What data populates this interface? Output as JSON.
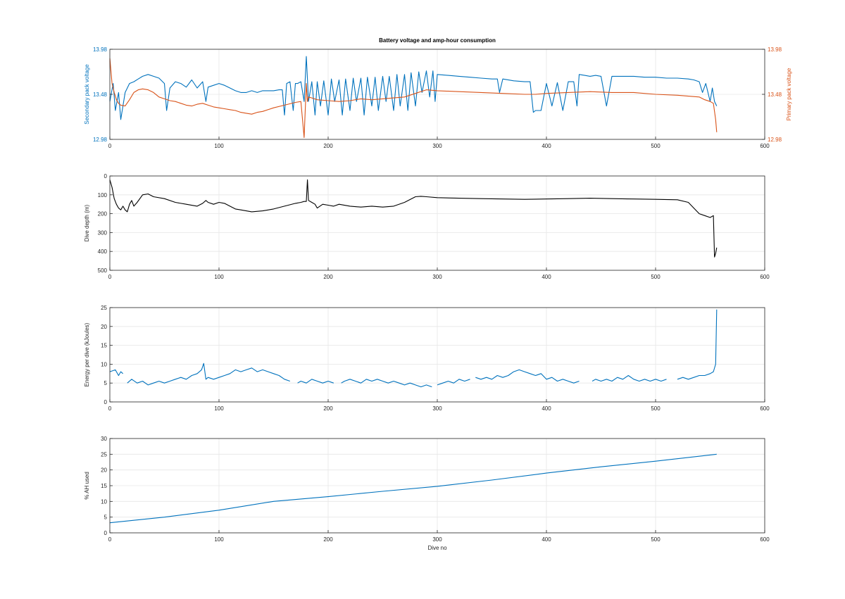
{
  "colors": {
    "blue": "#0072bd",
    "orange": "#d95319",
    "black": "#000000"
  },
  "chart_data": [
    {
      "type": "line",
      "title": "Battery voltage and amp-hour consumption",
      "xlabel": "",
      "ylabel": "Secondary pack voltage",
      "y2label": "Primary pack voltage",
      "xlim": [
        0,
        600
      ],
      "ylim": [
        12.98,
        13.98
      ],
      "y2lim": [
        12.98,
        13.98
      ],
      "xticks": [
        "0",
        "100",
        "200",
        "300",
        "400",
        "500",
        "600"
      ],
      "yticks": [
        "12.98",
        "13.48",
        "13.98"
      ],
      "y2ticks": [
        "12.98",
        "13.48",
        "13.98"
      ],
      "grid": true,
      "series": [
        {
          "axis": "left",
          "color": "#0072bd",
          "x": [
            0,
            3,
            5,
            8,
            10,
            14,
            18,
            22,
            26,
            30,
            35,
            40,
            45,
            50,
            52,
            55,
            60,
            65,
            70,
            75,
            80,
            85,
            88,
            90,
            95,
            100,
            105,
            110,
            115,
            120,
            125,
            130,
            135,
            140,
            145,
            150,
            155,
            158,
            160,
            162,
            165,
            168,
            170,
            172,
            175,
            178,
            180,
            181,
            182,
            185,
            188,
            190,
            193,
            196,
            200,
            203,
            206,
            210,
            213,
            216,
            220,
            223,
            226,
            230,
            233,
            236,
            240,
            243,
            246,
            250,
            253,
            256,
            260,
            263,
            266,
            270,
            273,
            276,
            280,
            283,
            286,
            290,
            293,
            296,
            298,
            300,
            310,
            320,
            330,
            340,
            350,
            355,
            357,
            360,
            370,
            380,
            385,
            388,
            390,
            395,
            400,
            405,
            410,
            415,
            420,
            425,
            428,
            430,
            435,
            440,
            445,
            450,
            455,
            460,
            470,
            480,
            490,
            500,
            510,
            520,
            530,
            535,
            540,
            543,
            546,
            550,
            552,
            554,
            556
          ],
          "y": [
            13.4,
            13.6,
            13.3,
            13.5,
            13.2,
            13.5,
            13.6,
            13.62,
            13.65,
            13.68,
            13.7,
            13.68,
            13.66,
            13.6,
            13.3,
            13.55,
            13.62,
            13.6,
            13.56,
            13.64,
            13.55,
            13.62,
            13.4,
            13.56,
            13.58,
            13.6,
            13.58,
            13.55,
            13.52,
            13.5,
            13.5,
            13.52,
            13.5,
            13.52,
            13.52,
            13.52,
            13.53,
            13.53,
            13.25,
            13.6,
            13.62,
            13.3,
            13.6,
            13.6,
            13.62,
            13.4,
            13.9,
            13.65,
            13.4,
            13.62,
            13.25,
            13.62,
            13.35,
            13.63,
            13.25,
            13.65,
            13.4,
            13.64,
            13.25,
            13.65,
            13.3,
            13.66,
            13.4,
            13.66,
            13.25,
            13.67,
            13.35,
            13.67,
            13.3,
            13.68,
            13.4,
            13.68,
            13.3,
            13.7,
            13.35,
            13.7,
            13.3,
            13.72,
            13.35,
            13.73,
            13.5,
            13.74,
            13.45,
            13.74,
            13.4,
            13.7,
            13.69,
            13.68,
            13.67,
            13.66,
            13.65,
            13.65,
            13.5,
            13.65,
            13.63,
            13.62,
            13.62,
            13.28,
            13.3,
            13.3,
            13.6,
            13.35,
            13.61,
            13.3,
            13.62,
            13.62,
            13.35,
            13.7,
            13.69,
            13.68,
            13.69,
            13.68,
            13.35,
            13.68,
            13.68,
            13.68,
            13.67,
            13.67,
            13.66,
            13.66,
            13.65,
            13.64,
            13.62,
            13.5,
            13.6,
            13.4,
            13.55,
            13.4,
            13.35
          ]
        },
        {
          "axis": "right",
          "color": "#d95319",
          "x": [
            0,
            2,
            4,
            6,
            8,
            10,
            14,
            18,
            22,
            26,
            30,
            35,
            40,
            45,
            50,
            55,
            60,
            65,
            70,
            75,
            80,
            85,
            90,
            95,
            100,
            105,
            110,
            115,
            120,
            125,
            130,
            135,
            140,
            150,
            160,
            170,
            175,
            178,
            180,
            181,
            182,
            185,
            190,
            200,
            210,
            220,
            230,
            240,
            250,
            260,
            270,
            280,
            290,
            300,
            320,
            340,
            360,
            380,
            390,
            400,
            420,
            440,
            460,
            480,
            500,
            520,
            540,
            545,
            550,
            553,
            555,
            556
          ],
          "y": [
            13.88,
            13.6,
            13.5,
            13.42,
            13.38,
            13.36,
            13.35,
            13.42,
            13.5,
            13.53,
            13.54,
            13.53,
            13.5,
            13.45,
            13.43,
            13.41,
            13.4,
            13.38,
            13.36,
            13.35,
            13.37,
            13.38,
            13.36,
            13.34,
            13.33,
            13.32,
            13.31,
            13.3,
            13.28,
            13.27,
            13.26,
            13.28,
            13.29,
            13.33,
            13.36,
            13.39,
            13.4,
            13.0,
            13.6,
            13.4,
            13.45,
            13.44,
            13.42,
            13.41,
            13.4,
            13.41,
            13.43,
            13.42,
            13.43,
            13.44,
            13.45,
            13.49,
            13.53,
            13.52,
            13.51,
            13.5,
            13.49,
            13.48,
            13.48,
            13.49,
            13.5,
            13.51,
            13.5,
            13.5,
            13.48,
            13.47,
            13.45,
            13.42,
            13.4,
            13.38,
            13.2,
            13.06
          ]
        }
      ]
    },
    {
      "type": "line",
      "title": "",
      "xlabel": "",
      "ylabel": "Dive depth (m)",
      "xlim": [
        0,
        600
      ],
      "ylim": [
        0,
        500
      ],
      "y_reversed": true,
      "xticks": [
        "0",
        "100",
        "200",
        "300",
        "400",
        "500",
        "600"
      ],
      "yticks": [
        "0",
        "100",
        "200",
        "300",
        "400",
        "500"
      ],
      "grid": true,
      "series": [
        {
          "color": "#000000",
          "x": [
            0,
            2,
            4,
            6,
            8,
            10,
            12,
            14,
            16,
            18,
            20,
            22,
            25,
            30,
            35,
            40,
            50,
            60,
            70,
            80,
            85,
            88,
            90,
            95,
            100,
            105,
            110,
            115,
            120,
            130,
            140,
            150,
            160,
            170,
            175,
            178,
            180,
            181,
            182,
            185,
            188,
            190,
            195,
            200,
            205,
            210,
            220,
            230,
            240,
            250,
            260,
            270,
            280,
            285,
            290,
            300,
            320,
            340,
            360,
            380,
            400,
            420,
            440,
            460,
            480,
            500,
            520,
            530,
            540,
            545,
            550,
            553,
            554,
            555,
            556
          ],
          "y": [
            20,
            60,
            120,
            150,
            170,
            180,
            160,
            180,
            190,
            150,
            130,
            160,
            140,
            100,
            95,
            110,
            120,
            140,
            150,
            160,
            145,
            130,
            140,
            150,
            140,
            145,
            160,
            175,
            180,
            190,
            185,
            175,
            160,
            145,
            140,
            135,
            135,
            20,
            130,
            140,
            150,
            170,
            150,
            155,
            160,
            150,
            160,
            165,
            160,
            165,
            160,
            140,
            110,
            108,
            110,
            115,
            118,
            120,
            122,
            124,
            122,
            120,
            118,
            120,
            122,
            124,
            126,
            140,
            200,
            210,
            220,
            210,
            430,
            410,
            380
          ]
        }
      ]
    },
    {
      "type": "line",
      "title": "",
      "xlabel": "",
      "ylabel": "Energy per dive (kJoules)",
      "xlim": [
        0,
        600
      ],
      "ylim": [
        0,
        25
      ],
      "xticks": [
        "0",
        "100",
        "200",
        "300",
        "400",
        "500",
        "600"
      ],
      "yticks": [
        "0",
        "5",
        "10",
        "15",
        "20",
        "25"
      ],
      "grid": true,
      "series": [
        {
          "color": "#0072bd",
          "x": [
            0,
            5,
            8,
            10,
            12,
            14,
            16,
            20,
            25,
            30,
            35,
            40,
            45,
            50,
            55,
            60,
            65,
            70,
            75,
            80,
            84,
            86,
            88,
            90,
            95,
            100,
            105,
            110,
            115,
            120,
            125,
            130,
            135,
            140,
            145,
            150,
            155,
            160,
            165,
            null,
            172,
            175,
            180,
            185,
            190,
            195,
            200,
            205,
            null,
            212,
            215,
            220,
            225,
            230,
            235,
            240,
            245,
            250,
            255,
            260,
            265,
            270,
            275,
            280,
            285,
            290,
            295,
            null,
            300,
            305,
            310,
            315,
            320,
            325,
            330,
            null,
            335,
            340,
            345,
            350,
            355,
            360,
            365,
            370,
            375,
            380,
            385,
            390,
            395,
            400,
            405,
            410,
            415,
            420,
            425,
            430,
            null,
            442,
            445,
            450,
            455,
            460,
            465,
            470,
            475,
            480,
            485,
            490,
            495,
            500,
            505,
            510,
            null,
            520,
            525,
            530,
            535,
            540,
            545,
            550,
            553,
            555,
            556
          ],
          "y": [
            8,
            8.5,
            7,
            8,
            7.5,
            null,
            5,
            6,
            5,
            5.5,
            4.5,
            5,
            5.5,
            5,
            5.5,
            6,
            6.5,
            6,
            7,
            7.5,
            8.5,
            10.2,
            6,
            6.5,
            6,
            6.5,
            7,
            7.5,
            8.5,
            8,
            8.5,
            9,
            8,
            8.5,
            8,
            7.5,
            7,
            6,
            5.5,
            null,
            5,
            5.5,
            5,
            6,
            5.5,
            5,
            5.5,
            5,
            null,
            5,
            5.5,
            6,
            5.5,
            5,
            6,
            5.5,
            6,
            5.5,
            5,
            5.5,
            5,
            4.5,
            5,
            4.5,
            4,
            4.5,
            4,
            null,
            4.5,
            5,
            5.5,
            5,
            6,
            5.5,
            6,
            null,
            6.5,
            6,
            6.5,
            6,
            7,
            6.5,
            7,
            8,
            8.5,
            8,
            7.5,
            7,
            7.5,
            6,
            6.5,
            5.5,
            6,
            5.5,
            5,
            5.5,
            null,
            5.5,
            6,
            5.5,
            6,
            5.5,
            6.5,
            6,
            7,
            6,
            5.5,
            6,
            5.5,
            6,
            5.5,
            6,
            null,
            6,
            6.5,
            6,
            6.5,
            7,
            7,
            7.5,
            8,
            10,
            24.5
          ]
        }
      ]
    },
    {
      "type": "line",
      "title": "",
      "xlabel": "Dive no",
      "ylabel": "% AH used",
      "xlim": [
        0,
        600
      ],
      "ylim": [
        0,
        30
      ],
      "xticks": [
        "0",
        "100",
        "200",
        "300",
        "400",
        "500",
        "600"
      ],
      "yticks": [
        "0",
        "5",
        "10",
        "15",
        "20",
        "25",
        "30"
      ],
      "grid": true,
      "series": [
        {
          "color": "#0072bd",
          "x": [
            0,
            50,
            100,
            150,
            200,
            250,
            300,
            350,
            400,
            450,
            500,
            556
          ],
          "y": [
            3.2,
            5,
            7.2,
            10,
            11.5,
            13.2,
            14.8,
            16.8,
            19,
            21,
            22.8,
            25
          ]
        }
      ]
    }
  ]
}
